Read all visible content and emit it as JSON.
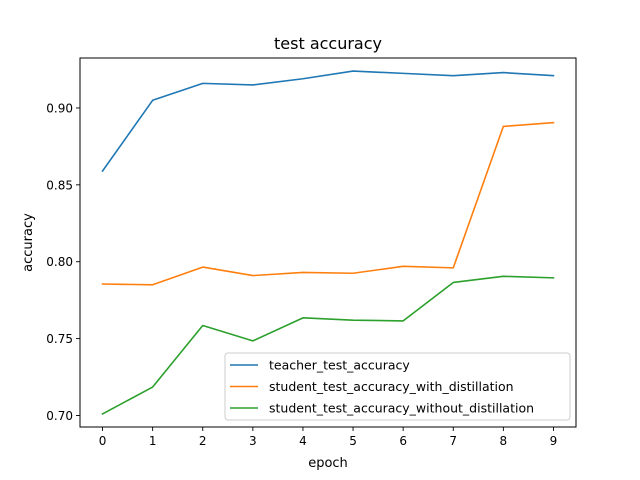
{
  "chart_data": {
    "type": "line",
    "title": "test accuracy",
    "xlabel": "epoch",
    "ylabel": "accuracy",
    "x": [
      0,
      1,
      2,
      3,
      4,
      5,
      6,
      7,
      8,
      9
    ],
    "xlim": [
      -0.45,
      9.45
    ],
    "ylim": [
      0.6925,
      0.9325
    ],
    "xticks": [
      0,
      1,
      2,
      3,
      4,
      5,
      6,
      7,
      8,
      9
    ],
    "yticks": [
      0.7,
      0.75,
      0.8,
      0.85,
      0.9
    ],
    "ytick_labels": [
      "0.70",
      "0.75",
      "0.80",
      "0.85",
      "0.90"
    ],
    "grid": false,
    "legend_position": "lower-right",
    "series": [
      {
        "name": "teacher_test_accuracy",
        "color": "#1f77b4",
        "values": [
          0.859,
          0.905,
          0.916,
          0.915,
          0.919,
          0.924,
          0.9225,
          0.921,
          0.923,
          0.921
        ]
      },
      {
        "name": "student_test_accuracy_with_distillation",
        "color": "#ff7f0e",
        "values": [
          0.7855,
          0.785,
          0.7965,
          0.791,
          0.793,
          0.7925,
          0.797,
          0.796,
          0.888,
          0.8905
        ]
      },
      {
        "name": "student_test_accuracy_without_distillation",
        "color": "#2ca02c",
        "values": [
          0.701,
          0.7185,
          0.7585,
          0.7485,
          0.7635,
          0.762,
          0.7615,
          0.7865,
          0.7905,
          0.7895
        ]
      }
    ]
  }
}
